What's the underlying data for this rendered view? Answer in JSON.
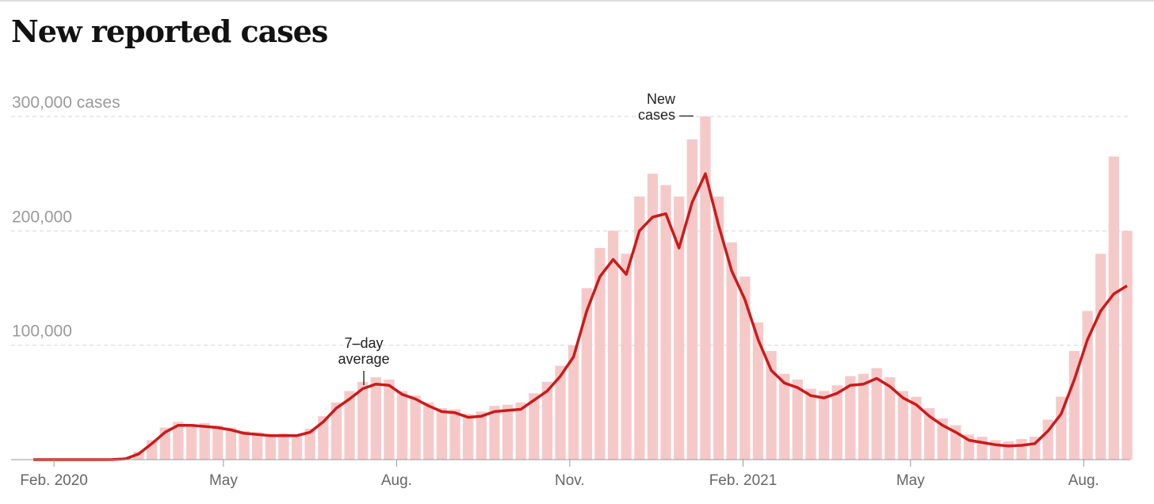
{
  "chart_data": {
    "type": "bar-line",
    "title": "New reported cases",
    "annotations": [
      [
        "7–day",
        "average"
      ],
      [
        "New",
        "cases —"
      ]
    ],
    "xlim": [
      0,
      83
    ],
    "xticks": [
      {
        "value": 1.57,
        "label": "Feb. 2020"
      },
      {
        "value": 14.43,
        "label": "May"
      },
      {
        "value": 27.57,
        "label": "Aug."
      },
      {
        "value": 40.71,
        "label": "Nov."
      },
      {
        "value": 53.86,
        "label": "Feb. 2021"
      },
      {
        "value": 66.57,
        "label": "May"
      },
      {
        "value": 79.71,
        "label": "Aug."
      }
    ],
    "ylim": [
      0,
      300000
    ],
    "yticks": [
      {
        "value": 100000,
        "label": "100,000"
      },
      {
        "value": 200000,
        "label": "200,000"
      },
      {
        "value": 300000,
        "label": "300,000 cases"
      }
    ],
    "grid": true,
    "series": [
      {
        "name": "New cases",
        "kind": "bar",
        "color": "#f6c9c9",
        "values": [
          0,
          0,
          0,
          0,
          0,
          0,
          300,
          1200,
          7000,
          17000,
          28000,
          33000,
          31000,
          32000,
          30000,
          28000,
          25000,
          24000,
          22000,
          23000,
          22000,
          27000,
          38000,
          50000,
          60000,
          68000,
          72000,
          70000,
          60000,
          56000,
          50000,
          45000,
          44000,
          40000,
          42000,
          47000,
          48000,
          50000,
          58000,
          68000,
          82000,
          100000,
          150000,
          185000,
          200000,
          180000,
          230000,
          250000,
          240000,
          230000,
          280000,
          300000,
          230000,
          190000,
          160000,
          120000,
          95000,
          75000,
          70000,
          62000,
          60000,
          65000,
          73000,
          75000,
          80000,
          72000,
          60000,
          55000,
          45000,
          36000,
          30000,
          22000,
          20000,
          17000,
          16000,
          18000,
          20000,
          35000,
          55000,
          95000,
          130000,
          180000,
          265000,
          200000
        ]
      },
      {
        "name": "7-day average",
        "kind": "line",
        "color": "#cc1a1a",
        "values": [
          0,
          0,
          0,
          0,
          0,
          0,
          100,
          700,
          5000,
          14000,
          24000,
          30000,
          30000,
          29000,
          28000,
          26000,
          23000,
          22000,
          21000,
          21000,
          21000,
          24000,
          33000,
          45000,
          53000,
          62000,
          66000,
          65000,
          57000,
          53000,
          47000,
          42000,
          41000,
          37000,
          38000,
          42000,
          43000,
          44000,
          52000,
          60000,
          73000,
          90000,
          130000,
          160000,
          175000,
          162000,
          200000,
          212000,
          215000,
          185000,
          225000,
          250000,
          205000,
          165000,
          140000,
          105000,
          78000,
          67000,
          63000,
          56000,
          54000,
          58000,
          65000,
          66000,
          71000,
          64000,
          54000,
          48000,
          38000,
          30000,
          24000,
          17000,
          15000,
          13000,
          12000,
          12500,
          14000,
          25000,
          40000,
          70000,
          105000,
          130000,
          145000,
          152000
        ]
      }
    ]
  }
}
